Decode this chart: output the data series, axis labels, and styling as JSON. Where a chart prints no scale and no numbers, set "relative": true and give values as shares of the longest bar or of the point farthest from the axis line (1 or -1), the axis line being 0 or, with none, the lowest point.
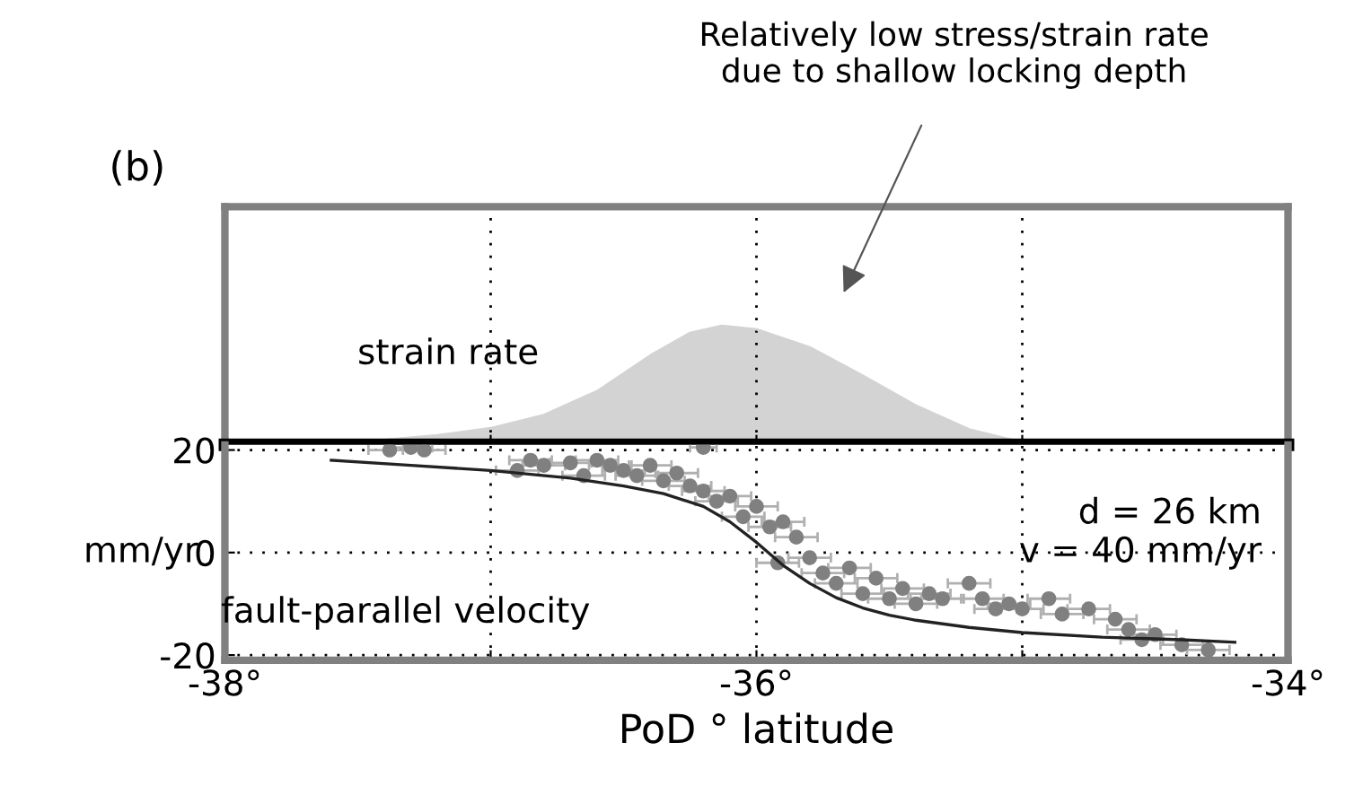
{
  "chart_data": [
    {
      "type": "area",
      "title": "(b)",
      "relative": true,
      "xlim": [
        -38,
        -34
      ],
      "xticks": [
        -38,
        -37,
        -36,
        -35,
        -34
      ],
      "tick_labels": false,
      "grid": "x",
      "series": [
        {
          "color": "#d3d3d3",
          "x": [
            -37.62,
            -37.4,
            -37.2,
            -37.0,
            -36.8,
            -36.6,
            -36.4,
            -36.25,
            -36.13,
            -36.0,
            -35.8,
            -35.6,
            -35.4,
            -35.2,
            -35.0,
            -34.8
          ],
          "values": [
            0.0,
            0.04,
            0.08,
            0.14,
            0.25,
            0.45,
            0.75,
            0.94,
            1.0,
            0.97,
            0.82,
            0.58,
            0.33,
            0.13,
            0.02,
            0.0
          ]
        }
      ],
      "annotations": [
        "strain rate",
        "Relatively low stress/strain rate\ndue to shallow locking depth"
      ]
    },
    {
      "type": "scatter",
      "xlim": [
        -38,
        -34
      ],
      "ylim": [
        -21,
        21
      ],
      "xticks": [
        {
          "value": -38,
          "label": "-38°"
        },
        {
          "value": -37,
          "label": null
        },
        {
          "value": -36,
          "label": "-36°"
        },
        {
          "value": -35,
          "label": null
        },
        {
          "value": -34,
          "label": "-34°"
        }
      ],
      "yticks": [
        -20,
        0,
        20
      ],
      "xlabel": "PoD ° latitude",
      "ylabel": "mm/yr",
      "grid": true,
      "marker": "circle",
      "series": [
        {
          "type": "scatter",
          "color": "#808080",
          "x": [
            -37.38,
            -37.3,
            -37.25,
            -36.9,
            -36.85,
            -36.8,
            -36.7,
            -36.65,
            -36.6,
            -36.55,
            -36.5,
            -36.45,
            -36.4,
            -36.35,
            -36.3,
            -36.25,
            -36.2,
            -36.2,
            -36.15,
            -36.1,
            -36.05,
            -36.0,
            -35.95,
            -35.9,
            -35.92,
            -35.85,
            -35.8,
            -35.75,
            -35.7,
            -35.65,
            -35.6,
            -35.55,
            -35.5,
            -35.45,
            -35.4,
            -35.35,
            -35.3,
            -35.2,
            -35.15,
            -35.1,
            -35.05,
            -35.0,
            -34.9,
            -34.85,
            -34.75,
            -34.65,
            -34.6,
            -34.55,
            -34.5,
            -34.4,
            -34.3
          ],
          "values": [
            20,
            20.5,
            20,
            16,
            18,
            17,
            17.5,
            15,
            18,
            17,
            16,
            15,
            17,
            14,
            15.5,
            13,
            20.5,
            12,
            10,
            11,
            7,
            9,
            5,
            6,
            -2,
            3,
            -1,
            -4,
            -6,
            -3,
            -8,
            -5,
            -9,
            -7,
            -10,
            -8,
            -9,
            -6,
            -9,
            -11,
            -10,
            -11,
            -9,
            -12,
            -11,
            -13,
            -15,
            -17,
            -16,
            -18,
            -19
          ],
          "xerrors": [
            0.08,
            0.08,
            0.08,
            0.08,
            0.08,
            0.08,
            0.08,
            0.08,
            0.08,
            0.08,
            0.08,
            0.08,
            0.08,
            0.08,
            0.08,
            0.08,
            0.05,
            0.08,
            0.08,
            0.08,
            0.08,
            0.08,
            0.08,
            0.08,
            0.08,
            0.08,
            0.08,
            0.08,
            0.08,
            0.08,
            0.08,
            0.08,
            0.08,
            0.08,
            0.08,
            0.08,
            0.08,
            0.08,
            0.08,
            0.08,
            0.08,
            0.08,
            0.08,
            0.08,
            0.08,
            0.08,
            0.08,
            0.08,
            0.08,
            0.08,
            0.08
          ]
        },
        {
          "type": "line",
          "color": "#222222",
          "marker": "none",
          "x": [
            -37.6,
            -37.3,
            -37.0,
            -36.7,
            -36.5,
            -36.35,
            -36.2,
            -36.1,
            -36.0,
            -35.9,
            -35.8,
            -35.7,
            -35.6,
            -35.5,
            -35.4,
            -35.2,
            -35.0,
            -34.7,
            -34.4,
            -34.2
          ],
          "values": [
            18,
            17,
            16,
            14.5,
            13,
            11.5,
            9,
            6,
            2,
            -2.5,
            -6,
            -8.8,
            -10.8,
            -12.2,
            -13.2,
            -14.6,
            -15.6,
            -16.5,
            -17,
            -17.5
          ]
        }
      ],
      "annotations": [
        "fault-parallel velocity",
        "d = 26 km",
        "v = 40 mm/yr"
      ]
    }
  ]
}
